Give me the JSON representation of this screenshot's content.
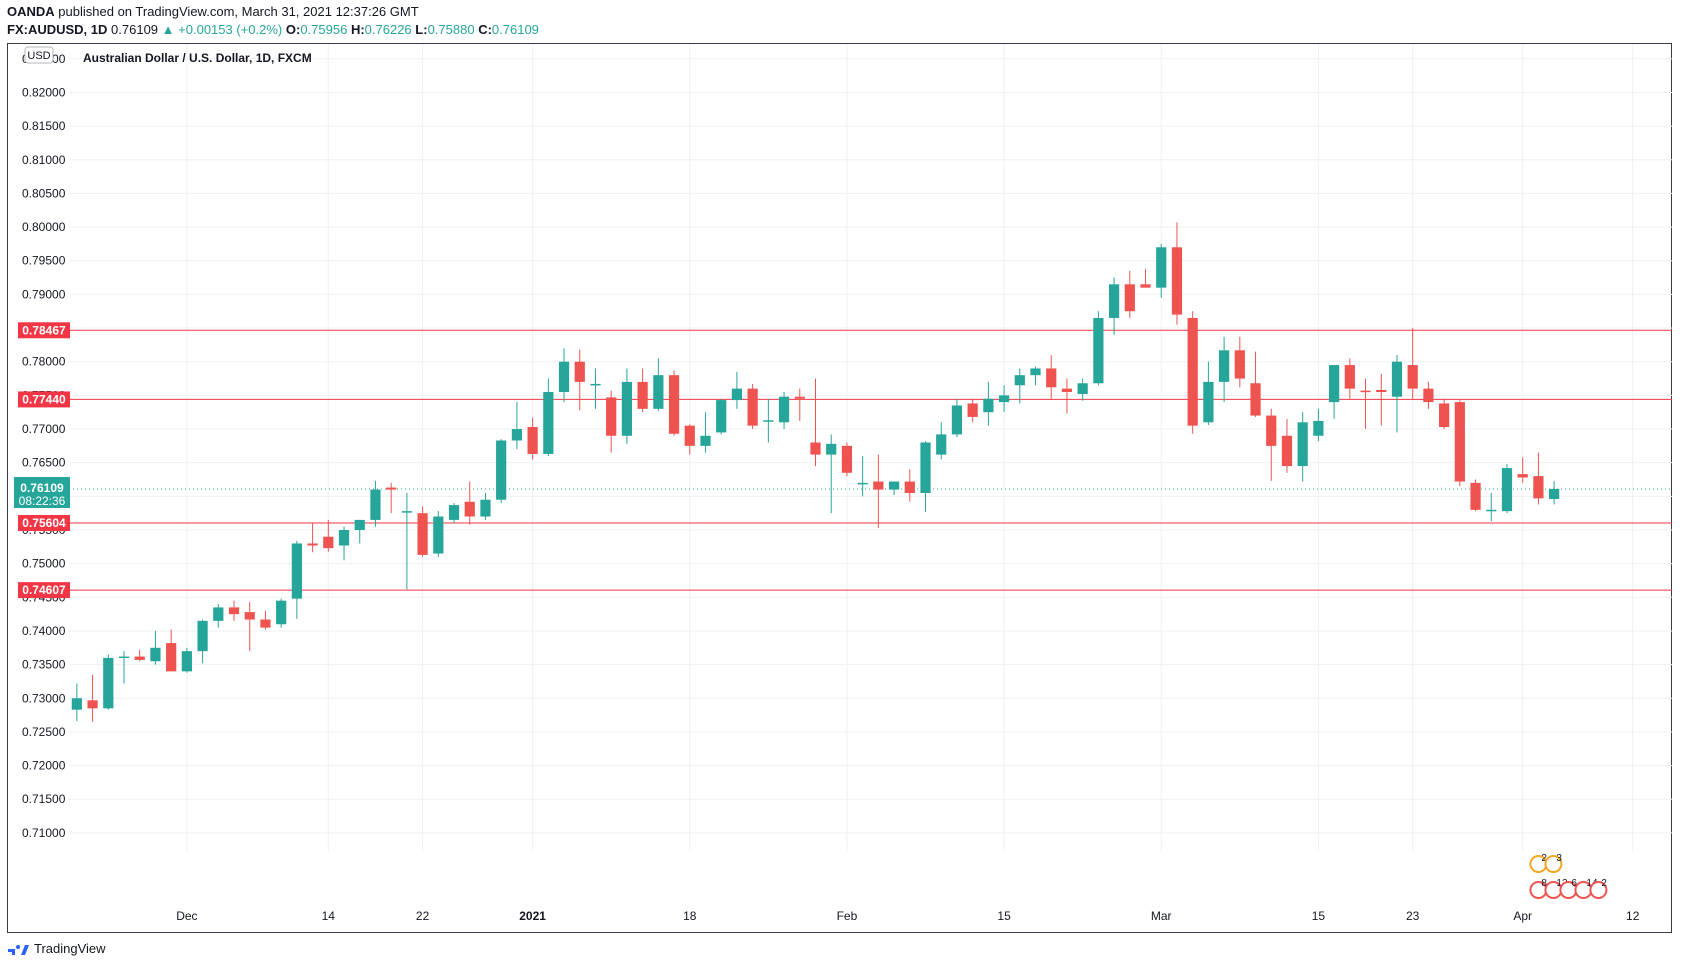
{
  "header": {
    "publisher": "OANDA",
    "published_text": "published on TradingView.com, March 31, 2021 12:37:26 GMT",
    "symbol": "FX:AUDUSD, 1D",
    "last": "0.76109",
    "change": "+0.00153 (+0.2%)",
    "o_label": "O:",
    "o_value": "0.75956",
    "h_label": "H:",
    "h_value": "0.76226",
    "l_label": "L:",
    "l_value": "0.75880",
    "c_label": "C:",
    "c_value": "0.76109"
  },
  "footer": {
    "brand": "TradingView"
  },
  "colors": {
    "up": "#26a69a",
    "down": "#ef5350",
    "level": "#f23645",
    "grid": "#eef0f3",
    "text": "#131722"
  },
  "chart_data": {
    "type": "candlestick",
    "title": "Australian Dollar / U.S. Dollar, 1D, FXCM",
    "currency_badge": "USD",
    "ylim": [
      0.7085,
      0.8272
    ],
    "y_ticks": [
      "0.82500",
      "0.82000",
      "0.81500",
      "0.81000",
      "0.80500",
      "0.80000",
      "0.79500",
      "0.79000",
      "0.78500",
      "0.78000",
      "0.77500",
      "0.77000",
      "0.76500",
      "0.76000",
      "0.75500",
      "0.75000",
      "0.74500",
      "0.74000",
      "0.73500",
      "0.73000",
      "0.72500",
      "0.72000",
      "0.71500",
      "0.71000"
    ],
    "x_ticks": [
      {
        "label": "Dec",
        "day": 7
      },
      {
        "label": "14",
        "day": 16
      },
      {
        "label": "22",
        "day": 22
      },
      {
        "label": "2021",
        "day": 29
      },
      {
        "label": "18",
        "day": 39
      },
      {
        "label": "Feb",
        "day": 49
      },
      {
        "label": "15",
        "day": 59
      },
      {
        "label": "Mar",
        "day": 69
      },
      {
        "label": "15",
        "day": 79
      },
      {
        "label": "23",
        "day": 85
      },
      {
        "label": "Apr",
        "day": 92
      },
      {
        "label": "12",
        "day": 99
      }
    ],
    "x_range_days": [
      -0.5,
      101.5
    ],
    "levels": [
      "0.78467",
      "0.77440",
      "0.75604",
      "0.74607"
    ],
    "last_price": {
      "value": "0.76109",
      "countdown": "08:22:36"
    },
    "grid": true,
    "events_upper": [
      "2",
      "3"
    ],
    "events_lower": [
      "8",
      "12",
      "6",
      "14",
      "2"
    ],
    "candles": [
      {
        "t": 0,
        "o": 0.7283,
        "h": 0.7322,
        "l": 0.7266,
        "c": 0.73
      },
      {
        "t": 1,
        "o": 0.7297,
        "h": 0.7335,
        "l": 0.7265,
        "c": 0.7285
      },
      {
        "t": 2,
        "o": 0.7285,
        "h": 0.7365,
        "l": 0.7283,
        "c": 0.736
      },
      {
        "t": 3,
        "o": 0.736,
        "h": 0.737,
        "l": 0.7322,
        "c": 0.7362
      },
      {
        "t": 4,
        "o": 0.7362,
        "h": 0.7372,
        "l": 0.7355,
        "c": 0.7357
      },
      {
        "t": 5,
        "o": 0.7355,
        "h": 0.74,
        "l": 0.735,
        "c": 0.7375
      },
      {
        "t": 6,
        "o": 0.7382,
        "h": 0.7402,
        "l": 0.734,
        "c": 0.734
      },
      {
        "t": 7,
        "o": 0.734,
        "h": 0.7375,
        "l": 0.7338,
        "c": 0.737
      },
      {
        "t": 8,
        "o": 0.737,
        "h": 0.7417,
        "l": 0.7352,
        "c": 0.7415
      },
      {
        "t": 9,
        "o": 0.7415,
        "h": 0.744,
        "l": 0.7405,
        "c": 0.7435
      },
      {
        "t": 10,
        "o": 0.7435,
        "h": 0.7445,
        "l": 0.7415,
        "c": 0.7425
      },
      {
        "t": 11,
        "o": 0.7428,
        "h": 0.7443,
        "l": 0.737,
        "c": 0.7417
      },
      {
        "t": 12,
        "o": 0.7417,
        "h": 0.743,
        "l": 0.7402,
        "c": 0.7405
      },
      {
        "t": 13,
        "o": 0.741,
        "h": 0.7448,
        "l": 0.7405,
        "c": 0.7445
      },
      {
        "t": 14,
        "o": 0.7448,
        "h": 0.7534,
        "l": 0.7418,
        "c": 0.753
      },
      {
        "t": 15,
        "o": 0.753,
        "h": 0.756,
        "l": 0.7517,
        "c": 0.7527
      },
      {
        "t": 16,
        "o": 0.754,
        "h": 0.7565,
        "l": 0.7518,
        "c": 0.7523
      },
      {
        "t": 17,
        "o": 0.7527,
        "h": 0.7555,
        "l": 0.7505,
        "c": 0.755
      },
      {
        "t": 18,
        "o": 0.755,
        "h": 0.7565,
        "l": 0.753,
        "c": 0.7565
      },
      {
        "t": 19,
        "o": 0.7565,
        "h": 0.7623,
        "l": 0.7555,
        "c": 0.761
      },
      {
        "t": 20,
        "o": 0.7613,
        "h": 0.762,
        "l": 0.7575,
        "c": 0.761
      },
      {
        "t": 21,
        "o": 0.7578,
        "h": 0.7605,
        "l": 0.7462,
        "c": 0.7578
      },
      {
        "t": 22,
        "o": 0.7575,
        "h": 0.7585,
        "l": 0.751,
        "c": 0.7513
      },
      {
        "t": 23,
        "o": 0.7515,
        "h": 0.7578,
        "l": 0.751,
        "c": 0.757
      },
      {
        "t": 24,
        "o": 0.7565,
        "h": 0.759,
        "l": 0.756,
        "c": 0.7587
      },
      {
        "t": 25,
        "o": 0.7592,
        "h": 0.7622,
        "l": 0.7558,
        "c": 0.757
      },
      {
        "t": 26,
        "o": 0.757,
        "h": 0.7605,
        "l": 0.7565,
        "c": 0.7595
      },
      {
        "t": 27,
        "o": 0.7595,
        "h": 0.7685,
        "l": 0.759,
        "c": 0.7683
      },
      {
        "t": 28,
        "o": 0.7683,
        "h": 0.774,
        "l": 0.767,
        "c": 0.77
      },
      {
        "t": 29,
        "o": 0.7703,
        "h": 0.7717,
        "l": 0.7655,
        "c": 0.7663
      },
      {
        "t": 30,
        "o": 0.7663,
        "h": 0.7775,
        "l": 0.766,
        "c": 0.7755
      },
      {
        "t": 31,
        "o": 0.7755,
        "h": 0.782,
        "l": 0.774,
        "c": 0.78
      },
      {
        "t": 32,
        "o": 0.78,
        "h": 0.7818,
        "l": 0.7728,
        "c": 0.777
      },
      {
        "t": 33,
        "o": 0.7767,
        "h": 0.779,
        "l": 0.773,
        "c": 0.7767
      },
      {
        "t": 34,
        "o": 0.7747,
        "h": 0.7757,
        "l": 0.7665,
        "c": 0.769
      },
      {
        "t": 35,
        "o": 0.769,
        "h": 0.779,
        "l": 0.7678,
        "c": 0.777
      },
      {
        "t": 36,
        "o": 0.777,
        "h": 0.779,
        "l": 0.7725,
        "c": 0.773
      },
      {
        "t": 37,
        "o": 0.773,
        "h": 0.7805,
        "l": 0.7727,
        "c": 0.778
      },
      {
        "t": 38,
        "o": 0.778,
        "h": 0.7787,
        "l": 0.769,
        "c": 0.7693
      },
      {
        "t": 39,
        "o": 0.7705,
        "h": 0.7707,
        "l": 0.7662,
        "c": 0.7675
      },
      {
        "t": 40,
        "o": 0.7675,
        "h": 0.7725,
        "l": 0.7665,
        "c": 0.769
      },
      {
        "t": 41,
        "o": 0.7695,
        "h": 0.7745,
        "l": 0.7692,
        "c": 0.7743
      },
      {
        "t": 42,
        "o": 0.7743,
        "h": 0.7785,
        "l": 0.773,
        "c": 0.776
      },
      {
        "t": 43,
        "o": 0.776,
        "h": 0.7767,
        "l": 0.77,
        "c": 0.7705
      },
      {
        "t": 44,
        "o": 0.7713,
        "h": 0.7745,
        "l": 0.768,
        "c": 0.7713
      },
      {
        "t": 45,
        "o": 0.771,
        "h": 0.7755,
        "l": 0.77,
        "c": 0.7748
      },
      {
        "t": 46,
        "o": 0.7748,
        "h": 0.776,
        "l": 0.7712,
        "c": 0.7745
      },
      {
        "t": 47,
        "o": 0.768,
        "h": 0.7775,
        "l": 0.7645,
        "c": 0.7662
      },
      {
        "t": 48,
        "o": 0.7662,
        "h": 0.7692,
        "l": 0.7575,
        "c": 0.7678
      },
      {
        "t": 49,
        "o": 0.7675,
        "h": 0.768,
        "l": 0.763,
        "c": 0.7635
      },
      {
        "t": 50,
        "o": 0.762,
        "h": 0.766,
        "l": 0.76,
        "c": 0.762
      },
      {
        "t": 51,
        "o": 0.7622,
        "h": 0.7662,
        "l": 0.7553,
        "c": 0.761
      },
      {
        "t": 52,
        "o": 0.761,
        "h": 0.7622,
        "l": 0.7602,
        "c": 0.7622
      },
      {
        "t": 53,
        "o": 0.7622,
        "h": 0.764,
        "l": 0.7592,
        "c": 0.7605
      },
      {
        "t": 54,
        "o": 0.7605,
        "h": 0.7682,
        "l": 0.7577,
        "c": 0.768
      },
      {
        "t": 55,
        "o": 0.7662,
        "h": 0.771,
        "l": 0.7655,
        "c": 0.7692
      },
      {
        "t": 56,
        "o": 0.7692,
        "h": 0.7745,
        "l": 0.7688,
        "c": 0.7735
      },
      {
        "t": 57,
        "o": 0.7738,
        "h": 0.7745,
        "l": 0.771,
        "c": 0.7718
      },
      {
        "t": 58,
        "o": 0.7725,
        "h": 0.777,
        "l": 0.7705,
        "c": 0.7745
      },
      {
        "t": 59,
        "o": 0.774,
        "h": 0.7765,
        "l": 0.7725,
        "c": 0.775
      },
      {
        "t": 60,
        "o": 0.7765,
        "h": 0.779,
        "l": 0.7738,
        "c": 0.778
      },
      {
        "t": 61,
        "o": 0.778,
        "h": 0.7793,
        "l": 0.7765,
        "c": 0.779
      },
      {
        "t": 62,
        "o": 0.779,
        "h": 0.781,
        "l": 0.7745,
        "c": 0.7762
      },
      {
        "t": 63,
        "o": 0.776,
        "h": 0.7775,
        "l": 0.7723,
        "c": 0.7755
      },
      {
        "t": 64,
        "o": 0.7752,
        "h": 0.7775,
        "l": 0.7742,
        "c": 0.7768
      },
      {
        "t": 65,
        "o": 0.7768,
        "h": 0.7875,
        "l": 0.7765,
        "c": 0.7865
      },
      {
        "t": 66,
        "o": 0.7865,
        "h": 0.7925,
        "l": 0.784,
        "c": 0.7915
      },
      {
        "t": 67,
        "o": 0.7915,
        "h": 0.7935,
        "l": 0.7865,
        "c": 0.7875
      },
      {
        "t": 68,
        "o": 0.7915,
        "h": 0.7938,
        "l": 0.791,
        "c": 0.791
      },
      {
        "t": 69,
        "o": 0.791,
        "h": 0.7975,
        "l": 0.7895,
        "c": 0.797
      },
      {
        "t": 70,
        "o": 0.797,
        "h": 0.8007,
        "l": 0.7855,
        "c": 0.787
      },
      {
        "t": 71,
        "o": 0.7865,
        "h": 0.7875,
        "l": 0.7693,
        "c": 0.7705
      },
      {
        "t": 72,
        "o": 0.771,
        "h": 0.78,
        "l": 0.7706,
        "c": 0.777
      },
      {
        "t": 73,
        "o": 0.777,
        "h": 0.7837,
        "l": 0.774,
        "c": 0.7817
      },
      {
        "t": 74,
        "o": 0.7817,
        "h": 0.7837,
        "l": 0.7762,
        "c": 0.7775
      },
      {
        "t": 75,
        "o": 0.7768,
        "h": 0.7815,
        "l": 0.7718,
        "c": 0.772
      },
      {
        "t": 76,
        "o": 0.772,
        "h": 0.773,
        "l": 0.7623,
        "c": 0.7675
      },
      {
        "t": 77,
        "o": 0.769,
        "h": 0.7715,
        "l": 0.7635,
        "c": 0.7645
      },
      {
        "t": 78,
        "o": 0.7645,
        "h": 0.7725,
        "l": 0.7622,
        "c": 0.771
      },
      {
        "t": 79,
        "o": 0.769,
        "h": 0.773,
        "l": 0.7682,
        "c": 0.7712
      },
      {
        "t": 80,
        "o": 0.774,
        "h": 0.7795,
        "l": 0.7715,
        "c": 0.7795
      },
      {
        "t": 81,
        "o": 0.7795,
        "h": 0.7805,
        "l": 0.7745,
        "c": 0.776
      },
      {
        "t": 82,
        "o": 0.7757,
        "h": 0.7775,
        "l": 0.77,
        "c": 0.7755
      },
      {
        "t": 83,
        "o": 0.7758,
        "h": 0.7782,
        "l": 0.7705,
        "c": 0.7755
      },
      {
        "t": 84,
        "o": 0.7748,
        "h": 0.781,
        "l": 0.7695,
        "c": 0.78
      },
      {
        "t": 85,
        "o": 0.7795,
        "h": 0.785,
        "l": 0.7745,
        "c": 0.776
      },
      {
        "t": 86,
        "o": 0.776,
        "h": 0.777,
        "l": 0.773,
        "c": 0.774
      },
      {
        "t": 87,
        "o": 0.7738,
        "h": 0.7745,
        "l": 0.77,
        "c": 0.7703
      },
      {
        "t": 88,
        "o": 0.774,
        "h": 0.7743,
        "l": 0.7615,
        "c": 0.7622
      },
      {
        "t": 89,
        "o": 0.762,
        "h": 0.7625,
        "l": 0.7578,
        "c": 0.758
      },
      {
        "t": 90,
        "o": 0.758,
        "h": 0.7605,
        "l": 0.7563,
        "c": 0.758
      },
      {
        "t": 91,
        "o": 0.7578,
        "h": 0.7648,
        "l": 0.7575,
        "c": 0.7642
      },
      {
        "t": 92,
        "o": 0.7633,
        "h": 0.7658,
        "l": 0.762,
        "c": 0.7628
      },
      {
        "t": 93,
        "o": 0.763,
        "h": 0.7665,
        "l": 0.7588,
        "c": 0.7597
      },
      {
        "t": 94,
        "o": 0.7596,
        "h": 0.7623,
        "l": 0.7588,
        "c": 0.7611
      }
    ]
  }
}
